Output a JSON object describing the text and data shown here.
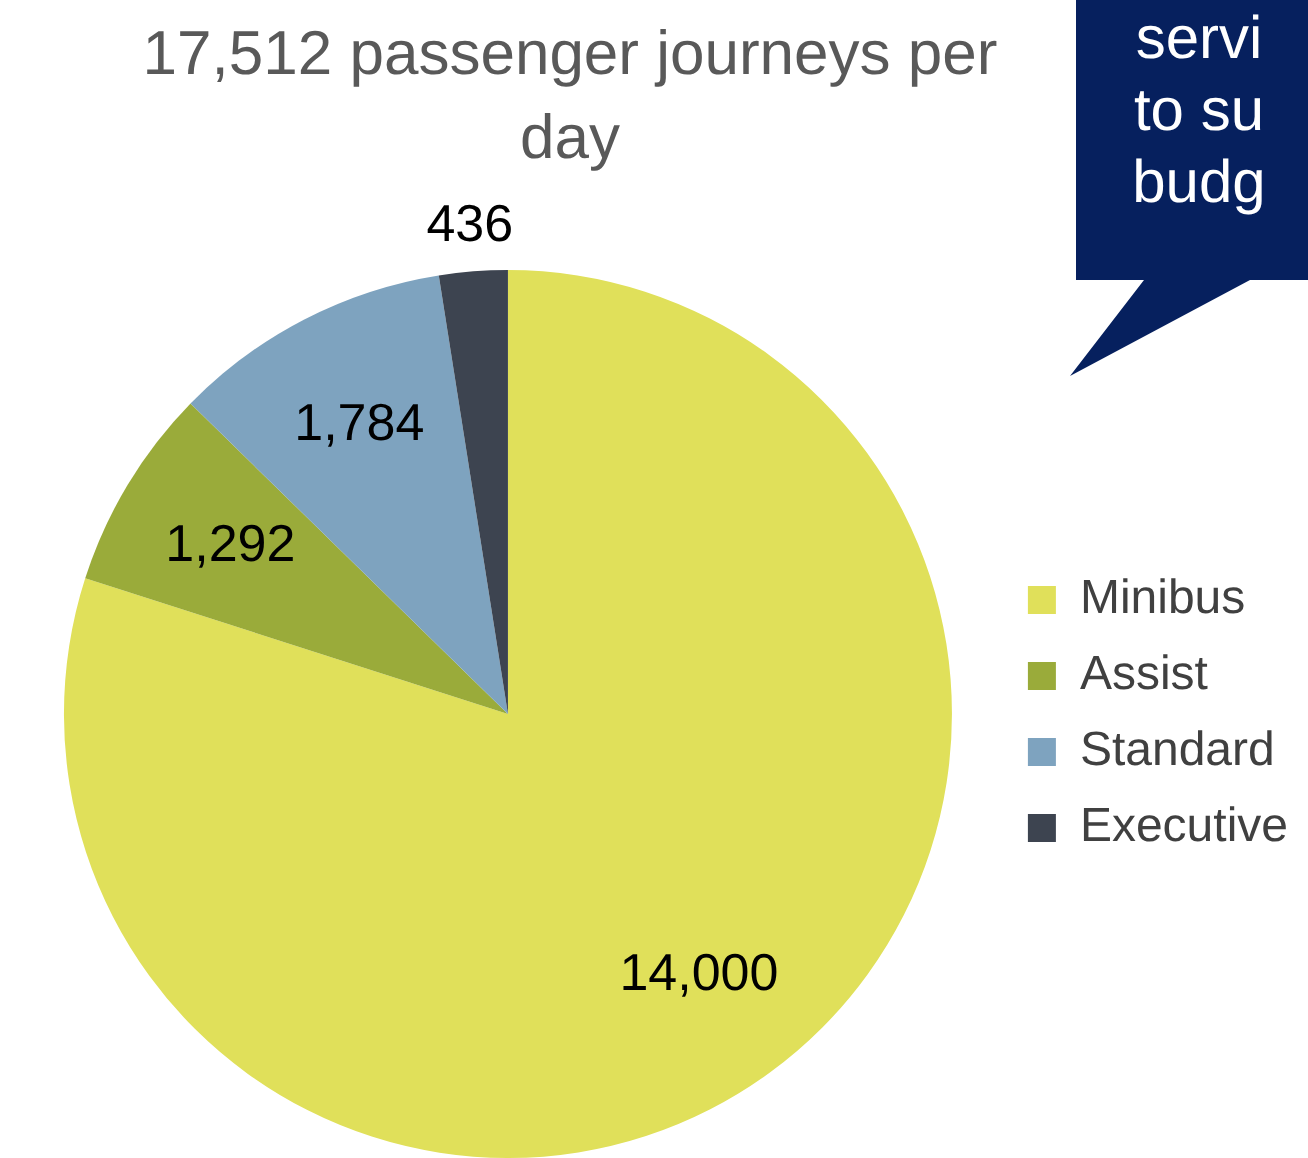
{
  "chart_data": {
    "type": "pie",
    "title": "17,512 passenger journeys per day",
    "categories": [
      "Minibus",
      "Assist",
      "Standard",
      "Executive"
    ],
    "values": [
      14000,
      1292,
      1784,
      436
    ],
    "colors": [
      "#e0e05a",
      "#9aab3a",
      "#7ea3bf",
      "#3d4450"
    ],
    "value_labels": [
      "14,000",
      "1,292",
      "1,784",
      "436"
    ],
    "legend": "right",
    "annotations": [
      "servi\nto su\nbudg"
    ]
  }
}
